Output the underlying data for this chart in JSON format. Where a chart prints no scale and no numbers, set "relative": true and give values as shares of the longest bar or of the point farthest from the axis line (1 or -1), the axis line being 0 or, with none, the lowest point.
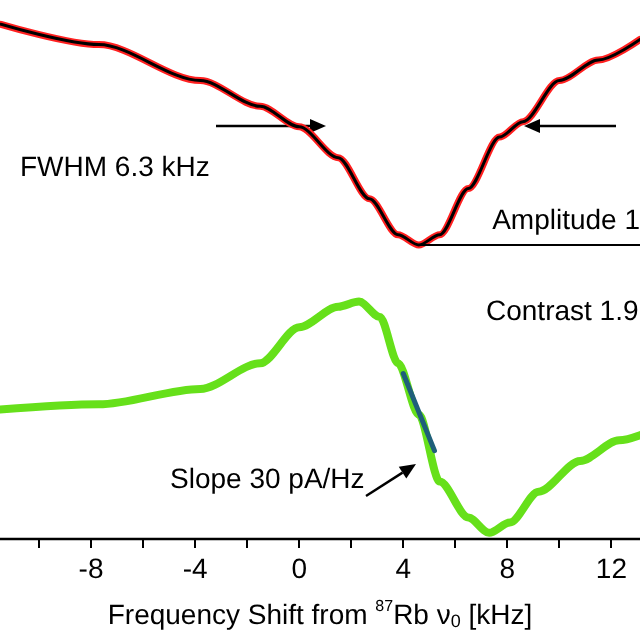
{
  "chart_data": {
    "type": "line",
    "relative": true,
    "grid": false,
    "marker": "none",
    "line_style": "solid",
    "xlabel": "Frequency Shift from $^{87}$Rb ν$_{0}$ [kHz]",
    "xlim": [
      -11.5,
      13.1
    ],
    "xticks": [
      {
        "value": -10,
        "label": null
      },
      -8,
      {
        "value": -6,
        "label": null
      },
      -4,
      {
        "value": -2,
        "label": null
      },
      0,
      {
        "value": 2,
        "label": null
      },
      4,
      {
        "value": 6,
        "label": null
      },
      8,
      {
        "value": 10,
        "label": null
      },
      12
    ],
    "annotations": [
      "FWHM 6.3 kHz",
      "Contrast 1.9",
      "Slope 30 pA/Hz"
    ],
    "ref_lines": [
      {
        "axis": "y",
        "value": 0.57,
        "label": "Amplitude 1",
        "color": "#000000"
      }
    ],
    "series": [
      {
        "color": "#ff2020",
        "x": [
          -11.5,
          -7.7,
          -3.8,
          -1.5,
          0,
          1.5,
          2.7,
          3.8,
          4.6,
          5.4,
          6.5,
          7.7,
          8.6,
          10,
          11.5,
          13.1
        ],
        "values": [
          1,
          0.96,
          0.89,
          0.84,
          0.8,
          0.74,
          0.66,
          0.59,
          0.57,
          0.59,
          0.68,
          0.78,
          0.81,
          0.89,
          0.93,
          0.97
        ]
      },
      {
        "color": "#000000",
        "x": [
          -11.5,
          -7.7,
          -3.8,
          -1.5,
          0,
          1.5,
          2.7,
          3.8,
          4.6,
          5.4,
          6.5,
          7.7,
          8.6,
          10,
          11.5,
          13.1
        ],
        "values": [
          1,
          0.96,
          0.89,
          0.84,
          0.8,
          0.74,
          0.66,
          0.59,
          0.57,
          0.59,
          0.68,
          0.78,
          0.81,
          0.89,
          0.93,
          0.97
        ]
      },
      {
        "color": "#66e01a",
        "x": [
          -11.5,
          -7.7,
          -3.8,
          -1.5,
          0,
          1.5,
          2.3,
          3.1,
          3.8,
          4.6,
          5.4,
          6.5,
          7.3,
          8.1,
          9.2,
          10.8,
          12.3,
          13.1
        ],
        "values": [
          0.25,
          0.26,
          0.29,
          0.34,
          0.41,
          0.45,
          0.46,
          0.43,
          0.34,
          0.24,
          0.11,
          0.04,
          0.01,
          0.03,
          0.09,
          0.15,
          0.19,
          0.2
        ]
      },
      {
        "color": "#1f5f7a",
        "x": [
          4.0,
          5.2
        ],
        "values": [
          0.32,
          0.17
        ]
      }
    ]
  }
}
